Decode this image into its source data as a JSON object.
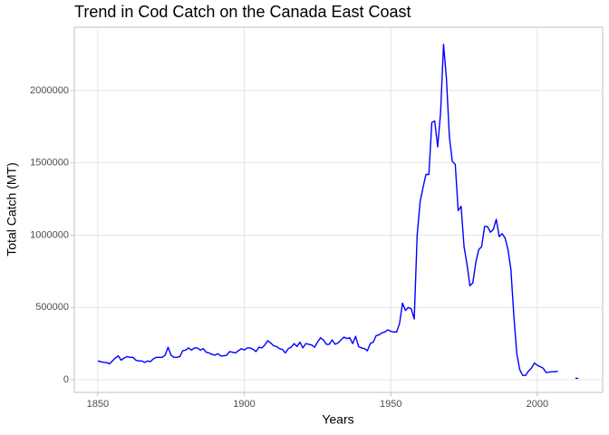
{
  "chart_data": {
    "type": "line",
    "title": "Trend in Cod Catch on the Canada East Coast",
    "x_label": "Years",
    "y_label": "Total Catch (MT)",
    "x": [
      1850,
      1851,
      1852,
      1853,
      1854,
      1855,
      1856,
      1857,
      1858,
      1859,
      1860,
      1861,
      1862,
      1863,
      1864,
      1865,
      1866,
      1867,
      1868,
      1869,
      1870,
      1871,
      1872,
      1873,
      1874,
      1875,
      1876,
      1877,
      1878,
      1879,
      1880,
      1881,
      1882,
      1883,
      1884,
      1885,
      1886,
      1887,
      1888,
      1889,
      1890,
      1891,
      1892,
      1893,
      1894,
      1895,
      1896,
      1897,
      1898,
      1899,
      1900,
      1901,
      1902,
      1903,
      1904,
      1905,
      1906,
      1907,
      1908,
      1909,
      1910,
      1911,
      1912,
      1913,
      1914,
      1915,
      1916,
      1917,
      1918,
      1919,
      1920,
      1921,
      1922,
      1923,
      1924,
      1925,
      1926,
      1927,
      1928,
      1929,
      1930,
      1931,
      1932,
      1933,
      1934,
      1935,
      1936,
      1937,
      1938,
      1939,
      1940,
      1941,
      1942,
      1943,
      1944,
      1945,
      1946,
      1947,
      1948,
      1949,
      1950,
      1951,
      1952,
      1953,
      1954,
      1955,
      1956,
      1957,
      1958,
      1959,
      1960,
      1961,
      1962,
      1963,
      1964,
      1965,
      1966,
      1967,
      1968,
      1969,
      1970,
      1971,
      1972,
      1973,
      1974,
      1975,
      1976,
      1977,
      1978,
      1979,
      1980,
      1981,
      1982,
      1983,
      1984,
      1985,
      1986,
      1987,
      1988,
      1989,
      1990,
      1991,
      1992,
      1993,
      1994,
      1995,
      1996,
      1997,
      1998,
      1999,
      2000,
      2001,
      2002,
      2003,
      2004,
      2005,
      2006,
      2007,
      2008,
      2009,
      2010,
      2011,
      2012,
      2013,
      2014
    ],
    "series": [
      {
        "name": "Total Catch",
        "color": "#0000ff",
        "values": [
          130000,
          125000,
          120000,
          118000,
          110000,
          130000,
          150000,
          165000,
          135000,
          150000,
          160000,
          155000,
          155000,
          135000,
          130000,
          130000,
          120000,
          130000,
          125000,
          145000,
          155000,
          155000,
          155000,
          170000,
          225000,
          170000,
          155000,
          155000,
          160000,
          200000,
          205000,
          220000,
          205000,
          220000,
          220000,
          205000,
          215000,
          190000,
          185000,
          175000,
          170000,
          180000,
          165000,
          165000,
          170000,
          195000,
          190000,
          185000,
          200000,
          215000,
          205000,
          220000,
          220000,
          210000,
          195000,
          225000,
          220000,
          240000,
          270000,
          255000,
          235000,
          230000,
          215000,
          210000,
          185000,
          215000,
          225000,
          250000,
          230000,
          260000,
          220000,
          250000,
          245000,
          240000,
          225000,
          260000,
          290000,
          275000,
          245000,
          245000,
          275000,
          245000,
          255000,
          275000,
          295000,
          285000,
          290000,
          250000,
          300000,
          230000,
          220000,
          215000,
          200000,
          250000,
          260000,
          305000,
          310000,
          325000,
          330000,
          345000,
          335000,
          330000,
          330000,
          390000,
          530000,
          480000,
          500000,
          490000,
          420000,
          1000000,
          1230000,
          1330000,
          1420000,
          1420000,
          1780000,
          1790000,
          1610000,
          1850000,
          2320000,
          2080000,
          1680000,
          1510000,
          1490000,
          1170000,
          1200000,
          920000,
          800000,
          650000,
          670000,
          810000,
          900000,
          920000,
          1060000,
          1060000,
          1020000,
          1040000,
          1110000,
          990000,
          1010000,
          980000,
          900000,
          760000,
          440000,
          180000,
          70000,
          30000,
          30000,
          60000,
          80000,
          115000,
          100000,
          90000,
          80000,
          50000,
          52000,
          55000,
          55000,
          58000,
          null,
          null,
          null,
          null,
          null,
          10000,
          10000
        ]
      }
    ],
    "xlim": [
      1842,
      2022.3
    ],
    "xticks": [
      1850,
      1900,
      1950,
      2000
    ],
    "ylim": [
      -87774,
      2438871
    ],
    "yticks": [
      0,
      500000,
      1000000,
      1500000,
      2000000
    ],
    "grid": true
  }
}
